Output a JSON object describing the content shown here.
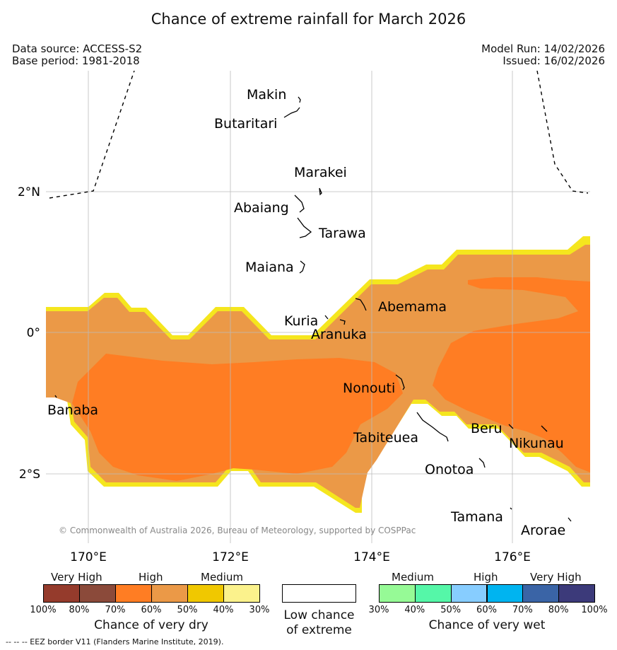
{
  "title": "Chance of extreme rainfall for March 2026",
  "meta": {
    "data_source": "Data source: ACCESS-S2",
    "base_period": "Base period: 1981-2018",
    "model_run": "Model Run: 14/02/2026",
    "issued": "Issued: 16/02/2026"
  },
  "map": {
    "lat_ticks": [
      "2°N",
      "0°",
      "2°S"
    ],
    "lon_ticks": [
      "170°E",
      "172°E",
      "174°E",
      "176°E"
    ],
    "copyright": "© Commonwealth of Australia 2026, Bureau of Meteorology, supported by COSPPac",
    "places": [
      "Makin",
      "Butaritari",
      "Marakei",
      "Abaiang",
      "Tarawa",
      "Maiana",
      "Abemama",
      "Kuria",
      "Aranuka",
      "Nonouti",
      "Banaba",
      "Tabiteuea",
      "Beru",
      "Nikunau",
      "Onotoa",
      "Tamana",
      "Arorae"
    ],
    "colors": {
      "dry_high_60_70": "#ff7d23",
      "dry_high_50_60": "#eb9947",
      "dry_medium_edge": "#f5e61e",
      "grid": "#bbbbbb",
      "coast": "#000000"
    }
  },
  "legend": {
    "dry": {
      "groups": [
        "Very High",
        "High",
        "Medium"
      ],
      "colors": [
        "#953b2c",
        "#8b4a3a",
        "#ff7d23",
        "#eb9947",
        "#f0c800",
        "#fbf28c"
      ],
      "ticks": [
        "100%",
        "80%",
        "70%",
        "60%",
        "50%",
        "40%",
        "30%"
      ],
      "label": "Chance of very dry"
    },
    "low": {
      "color": "#ffffff",
      "label_line1": "Low chance",
      "label_line2": "of extreme"
    },
    "wet": {
      "groups": [
        "Medium",
        "High",
        "Very High"
      ],
      "colors": [
        "#96fa96",
        "#55f7a8",
        "#87cdff",
        "#00b4f0",
        "#3a64a6",
        "#3c3a7a"
      ],
      "ticks": [
        "30%",
        "40%",
        "50%",
        "60%",
        "70%",
        "80%",
        "100%"
      ],
      "label": "Chance of very wet"
    }
  },
  "footer": "--  --  -- EEZ border V11 (Flanders Marine Institute, 2019)."
}
